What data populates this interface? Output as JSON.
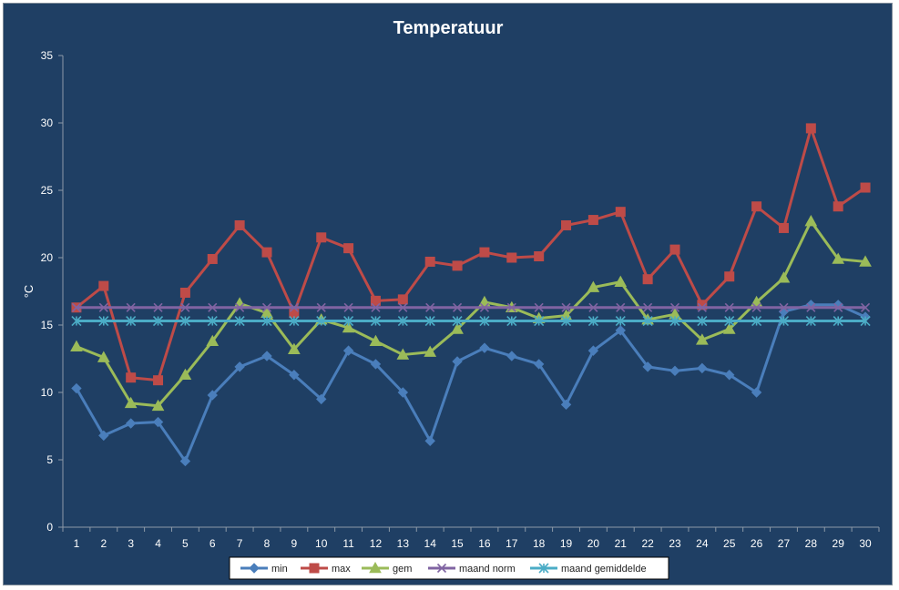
{
  "chart_data": {
    "type": "line",
    "title": "Temperatuur",
    "xlabel": "",
    "ylabel": "°C",
    "x": [
      1,
      2,
      3,
      4,
      5,
      6,
      7,
      8,
      9,
      10,
      11,
      12,
      13,
      14,
      15,
      16,
      17,
      18,
      19,
      20,
      21,
      22,
      23,
      24,
      25,
      26,
      27,
      28,
      29,
      30
    ],
    "ylim": [
      0,
      35
    ],
    "yticks": [
      0,
      5,
      10,
      15,
      20,
      25,
      30,
      35
    ],
    "grid": false,
    "legend_position": "bottom",
    "background_color": "#1f3f64",
    "series": [
      {
        "name": "min",
        "color": "#4a7ebb",
        "marker": "diamond",
        "values": [
          10.3,
          6.8,
          7.7,
          7.8,
          4.9,
          9.8,
          11.9,
          12.7,
          11.3,
          9.5,
          13.1,
          12.1,
          10.0,
          6.4,
          12.3,
          13.3,
          12.7,
          12.1,
          9.1,
          13.1,
          14.6,
          11.9,
          11.6,
          11.8,
          11.3,
          10.0,
          16.0,
          16.5,
          16.5,
          15.6
        ]
      },
      {
        "name": "max",
        "color": "#be4b48",
        "marker": "square",
        "values": [
          16.3,
          17.9,
          11.1,
          10.9,
          17.4,
          19.9,
          22.4,
          20.4,
          15.9,
          21.5,
          20.7,
          16.8,
          16.9,
          19.7,
          19.4,
          20.4,
          20.0,
          20.1,
          22.4,
          22.8,
          23.4,
          18.4,
          20.6,
          16.5,
          18.6,
          23.8,
          22.2,
          29.6,
          23.8,
          25.2
        ]
      },
      {
        "name": "gem",
        "color": "#9bbb59",
        "marker": "triangle",
        "values": [
          13.4,
          12.6,
          9.2,
          9.0,
          11.3,
          13.8,
          16.6,
          15.9,
          13.2,
          15.4,
          14.8,
          13.8,
          12.8,
          13.0,
          14.7,
          16.7,
          16.3,
          15.5,
          15.7,
          17.8,
          18.2,
          15.4,
          15.8,
          13.9,
          14.7,
          16.7,
          18.5,
          22.7,
          19.9,
          19.7
        ]
      },
      {
        "name": "maand norm",
        "color": "#8064a2",
        "marker": "x",
        "values": [
          16.3,
          16.3,
          16.3,
          16.3,
          16.3,
          16.3,
          16.3,
          16.3,
          16.3,
          16.3,
          16.3,
          16.3,
          16.3,
          16.3,
          16.3,
          16.3,
          16.3,
          16.3,
          16.3,
          16.3,
          16.3,
          16.3,
          16.3,
          16.3,
          16.3,
          16.3,
          16.3,
          16.3,
          16.3,
          16.3
        ]
      },
      {
        "name": "maand gemiddelde",
        "color": "#4bacc6",
        "marker": "star",
        "values": [
          15.3,
          15.3,
          15.3,
          15.3,
          15.3,
          15.3,
          15.3,
          15.3,
          15.3,
          15.3,
          15.3,
          15.3,
          15.3,
          15.3,
          15.3,
          15.3,
          15.3,
          15.3,
          15.3,
          15.3,
          15.3,
          15.3,
          15.3,
          15.3,
          15.3,
          15.3,
          15.3,
          15.3,
          15.3,
          15.3
        ]
      }
    ]
  }
}
